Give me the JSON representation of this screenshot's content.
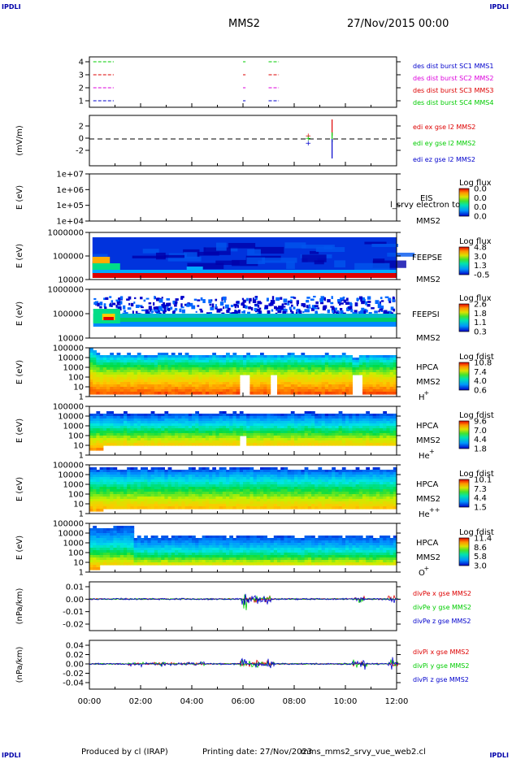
{
  "header": {
    "left_tag": "IPDLI",
    "right_tag": "IPDLI",
    "mission": "MMS2",
    "date": "27/Nov/2015 00:00"
  },
  "footer": {
    "left_tag": "IPDLI",
    "right_tag": "IPDLI",
    "produced_by": "Produced by cl (IRAP)",
    "printing_date": "Printing date: 27/Nov/2023",
    "filename": "mms_mms2_srvy_vue_web2.cl"
  },
  "time_axis": {
    "ticks": [
      "00:00",
      "02:00",
      "04:00",
      "06:00",
      "08:00",
      "10:00",
      "12:00"
    ]
  },
  "colors": {
    "red": "#dd0000",
    "green": "#00cc00",
    "blue": "#0000cc",
    "magenta": "#dd00dd"
  },
  "chart_data": [
    {
      "id": "burst",
      "type": "line",
      "yticks": [
        "1",
        "2",
        "3",
        "4"
      ],
      "legend": [
        {
          "text": "des dist burst SC1 MMS1",
          "color": "#0000cc"
        },
        {
          "text": "des dist burst SC2 MMS2",
          "color": "#dd00dd"
        },
        {
          "text": "des dist burst SC3 MMS3",
          "color": "#dd0000"
        },
        {
          "text": "des dist burst SC4 MMS4",
          "color": "#00cc00"
        }
      ]
    },
    {
      "id": "edi",
      "type": "scatter",
      "ylabel": "(mV/m)",
      "yticks": [
        "2",
        "0",
        "-2"
      ],
      "legend": [
        {
          "text": "edi ex gse l2 MMS2",
          "color": "#dd0000"
        },
        {
          "text": "edi ey gse l2 MMS2",
          "color": "#00cc00"
        },
        {
          "text": "edi ez gse l2 MMS2",
          "color": "#0000cc"
        }
      ]
    },
    {
      "id": "eis",
      "type": "heatmap",
      "ylabel": "E (eV)",
      "yticks": [
        "1e+07",
        "1e+06",
        "1e+05",
        "1e+04"
      ],
      "name": [
        "EIS",
        "MMS2"
      ],
      "overlay_text": "l_srvy electron to",
      "cbar_label": "Log flux",
      "cbar_ticks": [
        "0.0",
        "0.0",
        "0.0",
        "0.0"
      ]
    },
    {
      "id": "feepse",
      "type": "heatmap",
      "ylabel": "E (eV)",
      "yticks": [
        "1000000",
        "100000",
        "10000"
      ],
      "name": [
        "FEEPSE",
        "MMS2"
      ],
      "cbar_label": "Log flux",
      "cbar_ticks": [
        "4.8",
        "3.0",
        "1.3",
        "-0.5"
      ]
    },
    {
      "id": "feepsi",
      "type": "heatmap",
      "ylabel": "E (eV)",
      "yticks": [
        "1000000",
        "100000",
        "10000"
      ],
      "name": [
        "FEEPSI",
        "MMS2"
      ],
      "cbar_label": "Log flux",
      "cbar_ticks": [
        "2.6",
        "1.8",
        "1.1",
        "0.3"
      ]
    },
    {
      "id": "hpca_h",
      "type": "heatmap",
      "ylabel": "E (eV)",
      "yticks": [
        "100000",
        "10000",
        "1000",
        "100",
        "10",
        "1"
      ],
      "name": [
        "HPCA",
        "MMS2",
        "H",
        "+"
      ],
      "cbar_label": "Log fdist",
      "cbar_ticks": [
        "10.8",
        "7.4",
        "4.0",
        "0.6"
      ]
    },
    {
      "id": "hpca_he1",
      "type": "heatmap",
      "ylabel": "E (eV)",
      "yticks": [
        "100000",
        "10000",
        "1000",
        "100",
        "10",
        "1"
      ],
      "name": [
        "HPCA",
        "MMS2",
        "He",
        "+"
      ],
      "cbar_label": "Log fdist",
      "cbar_ticks": [
        "9.6",
        "7.0",
        "4.4",
        "1.8"
      ]
    },
    {
      "id": "hpca_he2",
      "type": "heatmap",
      "ylabel": "E (eV)",
      "yticks": [
        "100000",
        "10000",
        "1000",
        "100",
        "10",
        "1"
      ],
      "name": [
        "HPCA",
        "MMS2",
        "He",
        "++"
      ],
      "cbar_label": "Log fdist",
      "cbar_ticks": [
        "10.1",
        "7.3",
        "4.4",
        "1.5"
      ]
    },
    {
      "id": "hpca_o",
      "type": "heatmap",
      "ylabel": "E (eV)",
      "yticks": [
        "100000",
        "10000",
        "1000",
        "100",
        "10",
        "1"
      ],
      "name": [
        "HPCA",
        "MMS2",
        "O",
        "+"
      ],
      "cbar_label": "Log fdist",
      "cbar_ticks": [
        "11.4",
        "8.6",
        "5.8",
        "3.0"
      ]
    },
    {
      "id": "divpe",
      "type": "line",
      "ylabel": "(nPa/km)",
      "yticks": [
        "0.01",
        "0.00",
        "-0.01",
        "-0.02"
      ],
      "legend": [
        {
          "text": "divPe x gse MMS2",
          "color": "#dd0000"
        },
        {
          "text": "divPe y gse MMS2",
          "color": "#00cc00"
        },
        {
          "text": "divPe z gse MMS2",
          "color": "#0000cc"
        }
      ]
    },
    {
      "id": "divpi",
      "type": "line",
      "ylabel": "(nPa/km)",
      "yticks": [
        "0.04",
        "0.02",
        "0.00",
        "-0.02",
        "-0.04"
      ],
      "legend": [
        {
          "text": "divPi x gse MMS2",
          "color": "#dd0000"
        },
        {
          "text": "divPi y gse MMS2",
          "color": "#00cc00"
        },
        {
          "text": "divPi z gse MMS2",
          "color": "#0000cc"
        }
      ]
    }
  ]
}
